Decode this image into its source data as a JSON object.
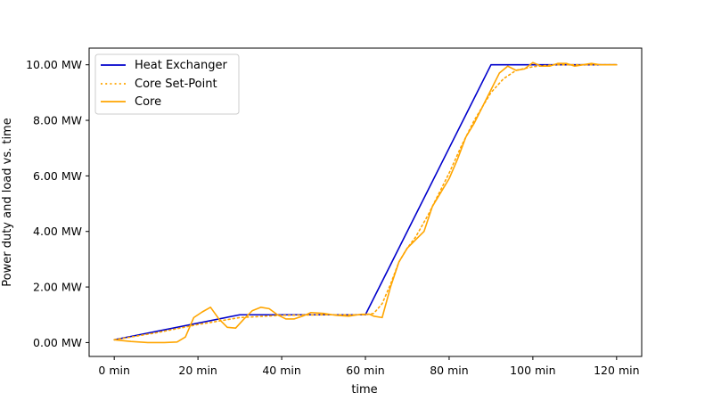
{
  "chart_data": {
    "type": "line",
    "title": "",
    "xlabel": "time",
    "ylabel": "Power duty and load vs. time",
    "x_unit_suffix": " min",
    "y_unit_suffix": " MW",
    "xlim": [
      -6,
      126
    ],
    "ylim": [
      -0.5,
      10.6
    ],
    "xticks": [
      0,
      20,
      40,
      60,
      80,
      100,
      120
    ],
    "yticks": [
      0,
      2,
      4,
      6,
      8,
      10
    ],
    "legend_position": "top-left",
    "grid": false,
    "series": [
      {
        "name": "Heat Exchanger",
        "color": "#0000cc",
        "style": "solid",
        "x": [
          0,
          30,
          60,
          90,
          120
        ],
        "y": [
          0.1,
          1.0,
          1.0,
          10.0,
          10.0
        ]
      },
      {
        "name": "Core Set-Point",
        "color": "#ffa500",
        "style": "dotted",
        "x": [
          0,
          10,
          20,
          30,
          40,
          50,
          60,
          62,
          64,
          66,
          68,
          70,
          72,
          75,
          78,
          80,
          83,
          86,
          90,
          93,
          96,
          100,
          105,
          110,
          115,
          120
        ],
        "y": [
          0.1,
          0.35,
          0.65,
          0.9,
          0.98,
          1.0,
          1.0,
          1.05,
          1.4,
          2.1,
          2.9,
          3.4,
          3.8,
          4.6,
          5.5,
          6.1,
          7.1,
          8.0,
          9.0,
          9.5,
          9.8,
          9.93,
          10.0,
          10.0,
          10.0,
          10.0
        ]
      },
      {
        "name": "Core",
        "color": "#ffa500",
        "style": "solid",
        "x": [
          0,
          4,
          8,
          12,
          15,
          17,
          19,
          21,
          23,
          25,
          27,
          29,
          31,
          33,
          35,
          37,
          39,
          41,
          43,
          45,
          47,
          50,
          53,
          56,
          59,
          61,
          62,
          64,
          66,
          68,
          70,
          72,
          74,
          76,
          78,
          80,
          82,
          84,
          86,
          88,
          90,
          92,
          94,
          96,
          98,
          100,
          102,
          104,
          106,
          108,
          110,
          112,
          114,
          116,
          118,
          120
        ],
        "y": [
          0.1,
          0.04,
          0.0,
          0.0,
          0.02,
          0.2,
          0.9,
          1.1,
          1.27,
          0.85,
          0.55,
          0.52,
          0.85,
          1.15,
          1.27,
          1.22,
          1.0,
          0.85,
          0.85,
          0.95,
          1.08,
          1.05,
          0.98,
          0.95,
          1.02,
          1.02,
          0.95,
          0.9,
          2.0,
          2.9,
          3.4,
          3.7,
          4.0,
          4.9,
          5.4,
          5.9,
          6.6,
          7.4,
          7.9,
          8.5,
          9.1,
          9.7,
          9.95,
          9.8,
          9.85,
          10.08,
          9.95,
          9.95,
          10.05,
          10.05,
          9.95,
          10.0,
          10.05,
          10.0,
          10.0,
          10.0
        ]
      }
    ]
  }
}
